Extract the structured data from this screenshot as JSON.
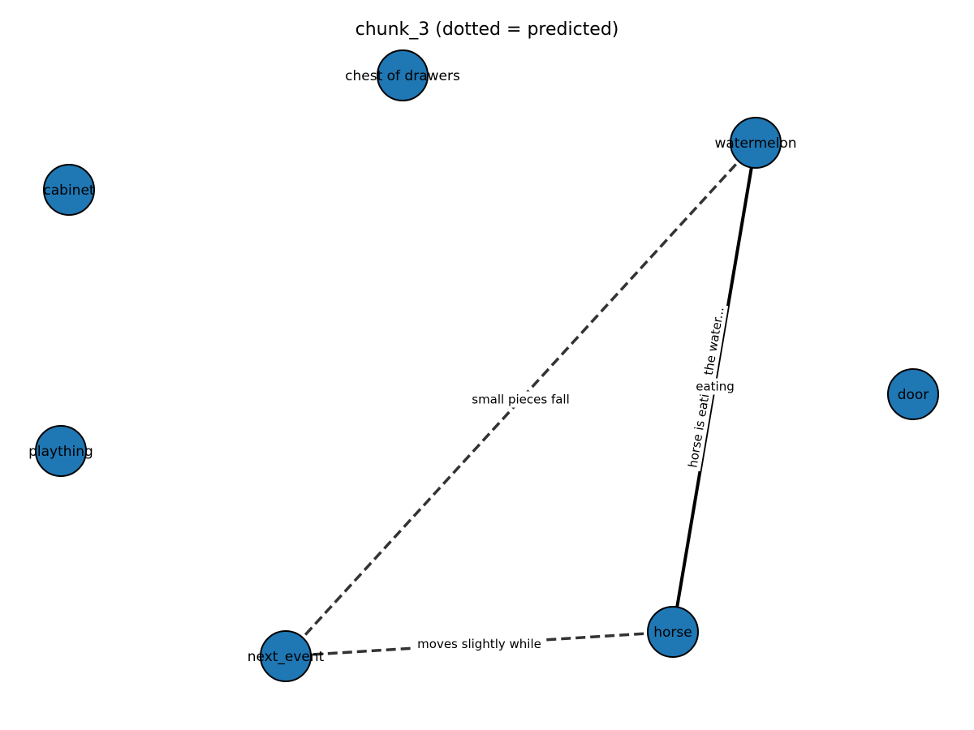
{
  "title": "chunk_3 (dotted = predicted)",
  "colors": {
    "node_fill": "#1f77b4",
    "node_stroke": "#000000",
    "edge_solid": "#000000",
    "edge_dashed": "#333333",
    "background": "#ffffff"
  },
  "nodes": [
    {
      "id": "chest_of_drawers",
      "label": "chest of drawers"
    },
    {
      "id": "watermelon",
      "label": "watermelon"
    },
    {
      "id": "cabinet",
      "label": "cabinet"
    },
    {
      "id": "plaything",
      "label": "plaything"
    },
    {
      "id": "door",
      "label": "door"
    },
    {
      "id": "horse",
      "label": "horse"
    },
    {
      "id": "next_event",
      "label": "next_event"
    }
  ],
  "edges": [
    {
      "id": "e1",
      "source": "horse",
      "target": "watermelon",
      "style": "solid",
      "label": "horse is eating the water...",
      "label_upright": "eating"
    },
    {
      "id": "e2",
      "source": "watermelon",
      "target": "next_event",
      "style": "dashed",
      "label": "small pieces fall"
    },
    {
      "id": "e3",
      "source": "horse",
      "target": "next_event",
      "style": "dashed",
      "label": "moves slightly while"
    }
  ]
}
